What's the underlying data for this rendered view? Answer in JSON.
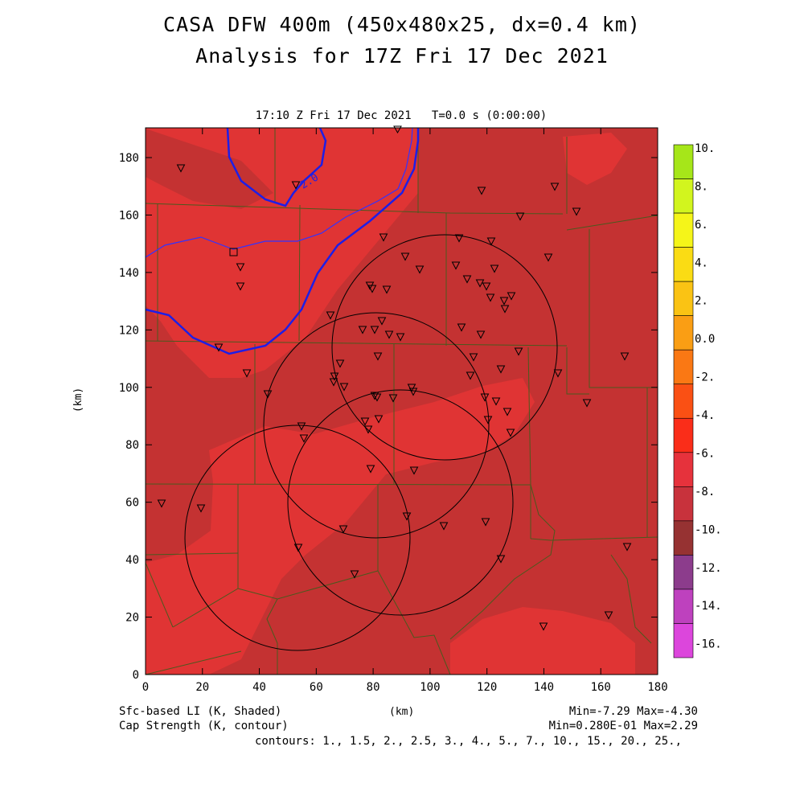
{
  "header": {
    "title_line1": "CASA DFW 400m (450x480x25, dx=0.4 km)",
    "title_line2": "Analysis for 17Z Fri 17 Dec 2021",
    "subtitle": "17:10 Z Fri 17 Dec 2021   T=0.0 s (0:00:00)"
  },
  "axes": {
    "x_label": "(km)",
    "y_label": "(km)",
    "x_ticks": [
      "0",
      "20",
      "40",
      "60",
      "80",
      "100",
      "120",
      "140",
      "160",
      "180"
    ],
    "y_ticks": [
      "0",
      "20",
      "40",
      "60",
      "80",
      "100",
      "120",
      "140",
      "160",
      "180"
    ]
  },
  "colorbar": {
    "labels": [
      "10.",
      "8.",
      "6.",
      "4.",
      "2.",
      "0.0",
      "-2.",
      "-4.",
      "-6.",
      "-8.",
      "-10.",
      "-12.",
      "-14.",
      "-16."
    ],
    "colors": [
      "#a6e619",
      "#d2f51e",
      "#f5f519",
      "#fadc14",
      "#fac314",
      "#fa9e14",
      "#fa7814",
      "#fa5014",
      "#fa2d19",
      "#e6323c",
      "#c8323c",
      "#963232",
      "#8c3c8c",
      "#be41be",
      "#dc46dc"
    ]
  },
  "legend": {
    "shaded_label": "Sfc-based LI (K, Shaded)",
    "contour_label": "Cap Strength (K, contour)",
    "shaded_minmax": "Min=-7.29 Max=-4.30",
    "contour_minmax": "Min=0.280E-01 Max=2.29",
    "contour_levels": "contours: 1., 1.5, 2., 2.5, 3., 4., 5., 7., 10., 15., 20., 25.,"
  },
  "map": {
    "contour_label": "2.0",
    "colors": {
      "field_dark": "#c43232",
      "field_light": "#e03434",
      "county_lines": "#4a5a1e",
      "cap_contour": "#1e1ee6"
    },
    "radar_rings": 4,
    "station_count": 78
  }
}
